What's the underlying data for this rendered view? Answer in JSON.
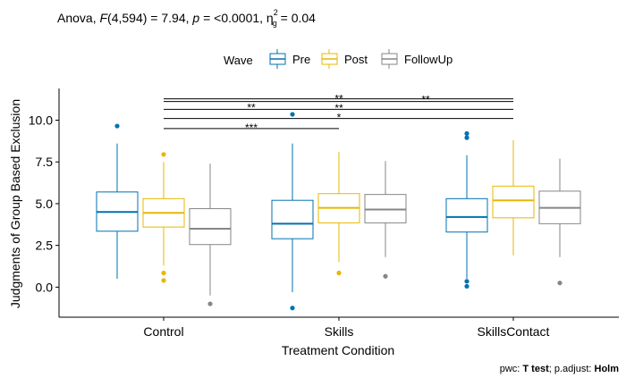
{
  "chart_data": {
    "type": "boxplot",
    "title_parts": {
      "prefix": "Anova, ",
      "f_symbol": "F",
      "f_args": "(4,594) = 7.94, ",
      "p_symbol": "p",
      "p_value": " = <0.0001, ",
      "eta_symbol": "η",
      "eta_sup": "2",
      "eta_sub": "g",
      "eta_value": " = 0.04"
    },
    "xlabel": "Treatment Condition",
    "ylabel": "Judgments of Group Based Exclusion",
    "ylim": [
      -1.8,
      11.9
    ],
    "yticks": [
      {
        "value": 0,
        "label": "0.0"
      },
      {
        "value": 2.5,
        "label": "2.5"
      },
      {
        "value": 5,
        "label": "5.0"
      },
      {
        "value": 7.5,
        "label": "7.5"
      },
      {
        "value": 10,
        "label": "10.0"
      }
    ],
    "categories": [
      "Control",
      "Skills",
      "SkillsContact"
    ],
    "legend": {
      "title": "Wave",
      "position": "top",
      "items": [
        {
          "name": "Pre",
          "color": "#0072B2"
        },
        {
          "name": "Post",
          "color": "#E7B800"
        },
        {
          "name": "FollowUp",
          "color": "#868686"
        }
      ]
    },
    "series": [
      {
        "name": "Pre",
        "color": "#0072B2",
        "boxes": [
          {
            "min": 0.5,
            "q1": 3.35,
            "median": 4.5,
            "q3": 5.7,
            "max": 8.6,
            "outliers": [
              9.65
            ]
          },
          {
            "min": -0.3,
            "q1": 2.9,
            "median": 3.8,
            "q3": 5.2,
            "max": 8.6,
            "outliers": [
              10.35,
              -1.25
            ]
          },
          {
            "min": 0.5,
            "q1": 3.3,
            "median": 4.2,
            "q3": 5.3,
            "max": 7.9,
            "outliers": [
              9.2,
              8.95,
              0.35,
              0.05
            ]
          }
        ]
      },
      {
        "name": "Post",
        "color": "#E7B800",
        "boxes": [
          {
            "min": 1.3,
            "q1": 3.6,
            "median": 4.45,
            "q3": 5.3,
            "max": 7.5,
            "outliers": [
              7.95,
              0.85,
              0.4
            ]
          },
          {
            "min": 1.5,
            "q1": 3.85,
            "median": 4.75,
            "q3": 5.6,
            "max": 8.1,
            "outliers": [
              0.85
            ]
          },
          {
            "min": 1.9,
            "q1": 4.15,
            "median": 5.2,
            "q3": 6.05,
            "max": 8.8,
            "outliers": []
          }
        ]
      },
      {
        "name": "FollowUp",
        "color": "#868686",
        "boxes": [
          {
            "min": -0.5,
            "q1": 2.55,
            "median": 3.5,
            "q3": 4.7,
            "max": 7.4,
            "outliers": [
              -1.0
            ]
          },
          {
            "min": 1.8,
            "q1": 3.85,
            "median": 4.65,
            "q3": 5.55,
            "max": 7.55,
            "outliers": [
              0.65
            ]
          },
          {
            "min": 1.8,
            "q1": 3.8,
            "median": 4.75,
            "q3": 5.75,
            "max": 7.7,
            "outliers": [
              0.25
            ]
          }
        ]
      }
    ],
    "significance": [
      {
        "x1": 0,
        "x2": 2,
        "y": 11.28,
        "label": "**",
        "label_x": 1.0
      },
      {
        "x1": 0,
        "x2": 2,
        "y": 11.2,
        "label": "**",
        "label_x": 1.5
      },
      {
        "x1": 0,
        "x2": 2,
        "y": 10.65,
        "label": "**",
        "label_x": 0.5
      },
      {
        "x1": 0,
        "x2": 2,
        "y": 10.65,
        "label": "**",
        "label_x": 1.0
      },
      {
        "x1": 0,
        "x2": 2,
        "y": 10.1,
        "label": "*",
        "label_x": 1.0
      },
      {
        "x1": 0,
        "x2": 1,
        "y": 9.5,
        "label": "***",
        "label_x": 0.5
      }
    ],
    "caption": {
      "prefix": "pwc: ",
      "test": "T test",
      "middle": "; p.adjust: ",
      "method": "Holm"
    }
  }
}
